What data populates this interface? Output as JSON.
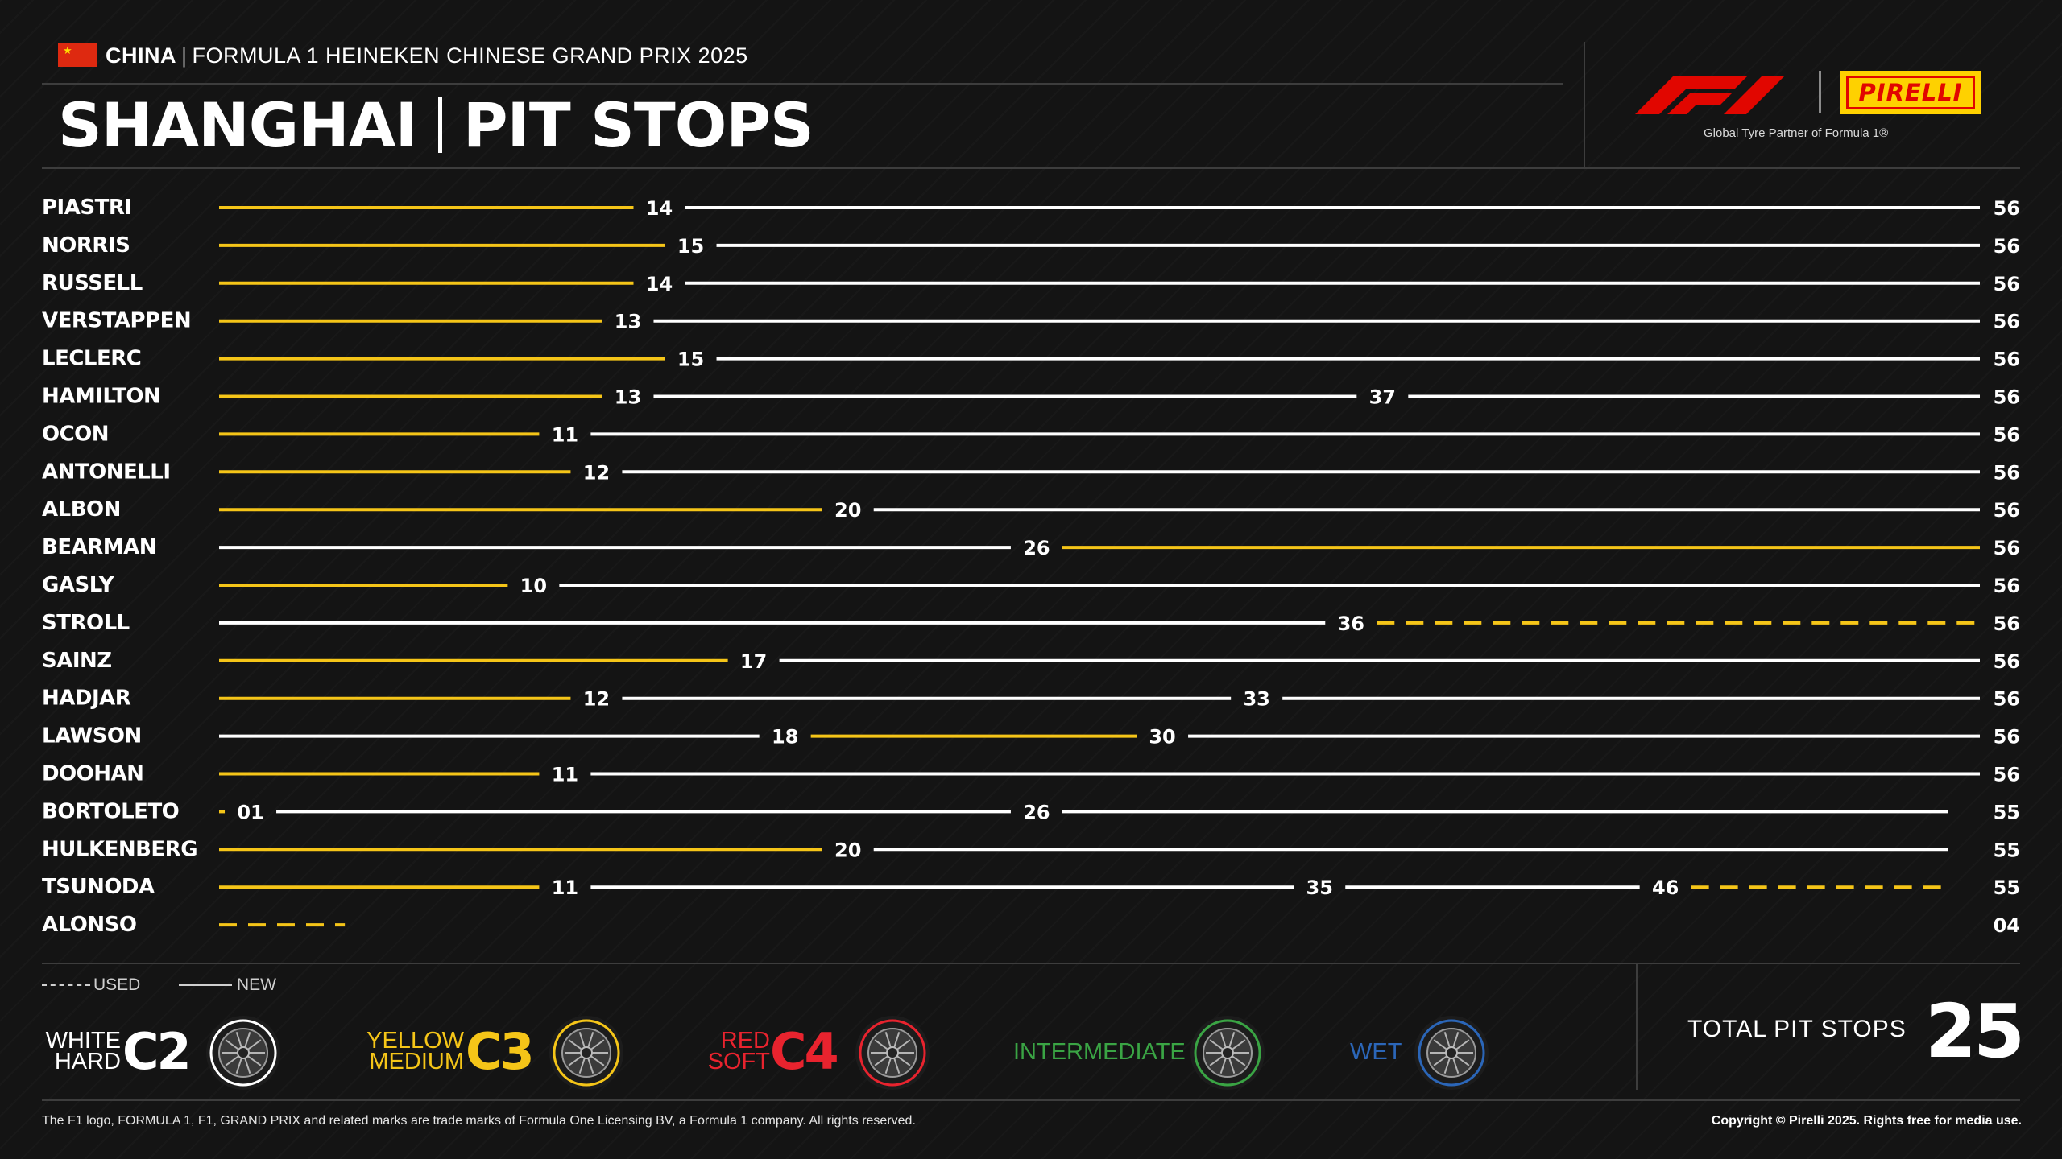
{
  "header": {
    "country": "CHINA",
    "event": "FORMULA 1 HEINEKEN CHINESE GRAND PRIX 2025",
    "venue": "SHANGHAI",
    "page_title": "PIT STOPS",
    "f1_logo_icon": "f1-logo-icon",
    "tyre_brand": "PIRELLI",
    "tagline": "Global Tyre Partner of Formula 1®"
  },
  "colors": {
    "hard": "#ffffff",
    "medium": "#f5c518",
    "soft": "#e8232e",
    "intermediate": "#3aa444",
    "wet": "#2b66b8",
    "background": "#141414"
  },
  "chart_data": {
    "type": "stint-timeline",
    "x_unit": "lap",
    "x_range": [
      0,
      56
    ],
    "drivers": [
      {
        "driver": "PIASTRI",
        "finish_lap": "56",
        "stints": [
          {
            "compound": "medium",
            "used": false,
            "end": 14,
            "label": "14"
          },
          {
            "compound": "hard",
            "used": false,
            "end": 56,
            "label": ""
          }
        ]
      },
      {
        "driver": "NORRIS",
        "finish_lap": "56",
        "stints": [
          {
            "compound": "medium",
            "used": false,
            "end": 15,
            "label": "15"
          },
          {
            "compound": "hard",
            "used": false,
            "end": 56,
            "label": ""
          }
        ]
      },
      {
        "driver": "RUSSELL",
        "finish_lap": "56",
        "stints": [
          {
            "compound": "medium",
            "used": false,
            "end": 14,
            "label": "14"
          },
          {
            "compound": "hard",
            "used": false,
            "end": 56,
            "label": ""
          }
        ]
      },
      {
        "driver": "VERSTAPPEN",
        "finish_lap": "56",
        "stints": [
          {
            "compound": "medium",
            "used": false,
            "end": 13,
            "label": "13"
          },
          {
            "compound": "hard",
            "used": false,
            "end": 56,
            "label": ""
          }
        ]
      },
      {
        "driver": "LECLERC",
        "finish_lap": "56",
        "stints": [
          {
            "compound": "medium",
            "used": false,
            "end": 15,
            "label": "15"
          },
          {
            "compound": "hard",
            "used": false,
            "end": 56,
            "label": ""
          }
        ]
      },
      {
        "driver": "HAMILTON",
        "finish_lap": "56",
        "stints": [
          {
            "compound": "medium",
            "used": false,
            "end": 13,
            "label": "13"
          },
          {
            "compound": "hard",
            "used": false,
            "end": 37,
            "label": "37"
          },
          {
            "compound": "hard",
            "used": false,
            "end": 56,
            "label": ""
          }
        ]
      },
      {
        "driver": "OCON",
        "finish_lap": "56",
        "stints": [
          {
            "compound": "medium",
            "used": false,
            "end": 11,
            "label": "11"
          },
          {
            "compound": "hard",
            "used": false,
            "end": 56,
            "label": ""
          }
        ]
      },
      {
        "driver": "ANTONELLI",
        "finish_lap": "56",
        "stints": [
          {
            "compound": "medium",
            "used": false,
            "end": 12,
            "label": "12"
          },
          {
            "compound": "hard",
            "used": false,
            "end": 56,
            "label": ""
          }
        ]
      },
      {
        "driver": "ALBON",
        "finish_lap": "56",
        "stints": [
          {
            "compound": "medium",
            "used": false,
            "end": 20,
            "label": "20"
          },
          {
            "compound": "hard",
            "used": false,
            "end": 56,
            "label": ""
          }
        ]
      },
      {
        "driver": "BEARMAN",
        "finish_lap": "56",
        "stints": [
          {
            "compound": "hard",
            "used": false,
            "end": 26,
            "label": "26"
          },
          {
            "compound": "medium",
            "used": false,
            "end": 56,
            "label": ""
          }
        ]
      },
      {
        "driver": "GASLY",
        "finish_lap": "56",
        "stints": [
          {
            "compound": "medium",
            "used": false,
            "end": 10,
            "label": "10"
          },
          {
            "compound": "hard",
            "used": false,
            "end": 56,
            "label": ""
          }
        ]
      },
      {
        "driver": "STROLL",
        "finish_lap": "56",
        "stints": [
          {
            "compound": "hard",
            "used": false,
            "end": 36,
            "label": "36"
          },
          {
            "compound": "medium",
            "used": true,
            "end": 56,
            "label": ""
          }
        ]
      },
      {
        "driver": "SAINZ",
        "finish_lap": "56",
        "stints": [
          {
            "compound": "medium",
            "used": false,
            "end": 17,
            "label": "17"
          },
          {
            "compound": "hard",
            "used": false,
            "end": 56,
            "label": ""
          }
        ]
      },
      {
        "driver": "HADJAR",
        "finish_lap": "56",
        "stints": [
          {
            "compound": "medium",
            "used": false,
            "end": 12,
            "label": "12"
          },
          {
            "compound": "hard",
            "used": false,
            "end": 33,
            "label": "33"
          },
          {
            "compound": "hard",
            "used": false,
            "end": 56,
            "label": ""
          }
        ]
      },
      {
        "driver": "LAWSON",
        "finish_lap": "56",
        "stints": [
          {
            "compound": "hard",
            "used": false,
            "end": 18,
            "label": "18"
          },
          {
            "compound": "medium",
            "used": false,
            "end": 30,
            "label": "30"
          },
          {
            "compound": "hard",
            "used": false,
            "end": 56,
            "label": ""
          }
        ]
      },
      {
        "driver": "DOOHAN",
        "finish_lap": "56",
        "stints": [
          {
            "compound": "medium",
            "used": false,
            "end": 11,
            "label": "11"
          },
          {
            "compound": "hard",
            "used": false,
            "end": 56,
            "label": ""
          }
        ]
      },
      {
        "driver": "BORTOLETO",
        "finish_lap": "55",
        "stints": [
          {
            "compound": "medium",
            "used": false,
            "end": 1,
            "label": "01"
          },
          {
            "compound": "hard",
            "used": false,
            "end": 26,
            "label": "26"
          },
          {
            "compound": "hard",
            "used": false,
            "end": 55,
            "label": ""
          }
        ]
      },
      {
        "driver": "HULKENBERG",
        "finish_lap": "55",
        "stints": [
          {
            "compound": "medium",
            "used": false,
            "end": 20,
            "label": "20"
          },
          {
            "compound": "hard",
            "used": false,
            "end": 55,
            "label": ""
          }
        ]
      },
      {
        "driver": "TSUNODA",
        "finish_lap": "55",
        "stints": [
          {
            "compound": "medium",
            "used": false,
            "end": 11,
            "label": "11"
          },
          {
            "compound": "hard",
            "used": false,
            "end": 35,
            "label": "35"
          },
          {
            "compound": "hard",
            "used": false,
            "end": 46,
            "label": "46"
          },
          {
            "compound": "medium",
            "used": true,
            "end": 55,
            "label": ""
          }
        ]
      },
      {
        "driver": "ALONSO",
        "finish_lap": "04",
        "stints": [
          {
            "compound": "medium",
            "used": true,
            "end": 4,
            "label": ""
          }
        ]
      }
    ]
  },
  "legend": {
    "used_label": "USED",
    "new_label": "NEW",
    "compounds": [
      {
        "key": "hard",
        "color_name": "WHITE",
        "name": "HARD",
        "code": "C2",
        "icon": "hard-tyre-icon"
      },
      {
        "key": "medium",
        "color_name": "YELLOW",
        "name": "MEDIUM",
        "code": "C3",
        "icon": "medium-tyre-icon"
      },
      {
        "key": "soft",
        "color_name": "RED",
        "name": "SOFT",
        "code": "C4",
        "icon": "soft-tyre-icon"
      },
      {
        "key": "intermediate",
        "name": "INTERMEDIATE",
        "icon": "intermediate-tyre-icon"
      },
      {
        "key": "wet",
        "name": "WET",
        "icon": "wet-tyre-icon"
      }
    ]
  },
  "totals": {
    "label": "TOTAL PIT STOPS",
    "value": "25"
  },
  "footer": {
    "left": "The F1 logo, FORMULA 1, F1, GRAND PRIX and related marks are trade marks of Formula One Licensing BV, a Formula 1 company. All rights reserved.",
    "right": "Copyright © Pirelli 2025. Rights free for media use."
  }
}
